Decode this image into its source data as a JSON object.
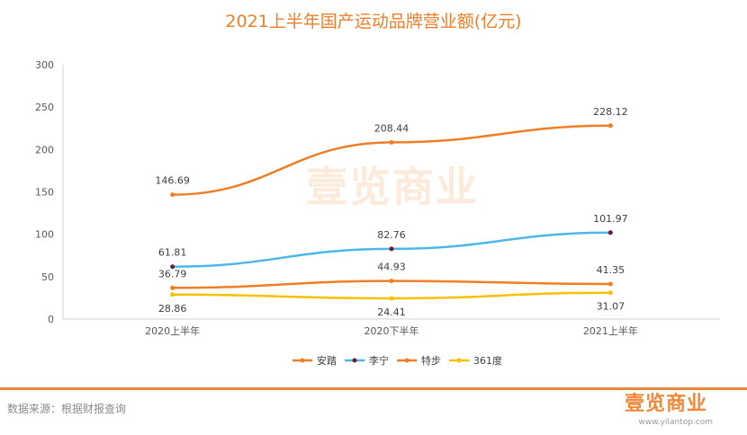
{
  "chart_data": {
    "type": "line",
    "title": "2021上半年国产运动品牌营业额(亿元)",
    "categories": [
      "2020上半年",
      "2020下半年",
      "2021上半年"
    ],
    "ylim": [
      0,
      300
    ],
    "yticks": [
      0,
      50,
      100,
      150,
      200,
      250,
      300
    ],
    "grid": false,
    "legend_position": "bottom",
    "series": [
      {
        "name": "安踏",
        "values": [
          146.69,
          208.44,
          228.12
        ],
        "labels": [
          "146.69",
          "208.44",
          "228.12"
        ],
        "color": "#f07e26",
        "marker": "#f07e26",
        "label_pos": "above"
      },
      {
        "name": "李宁",
        "values": [
          61.81,
          82.76,
          101.97
        ],
        "labels": [
          "61.81",
          "82.76",
          "101.97"
        ],
        "color": "#4db8e8",
        "marker": "#6b1d38",
        "label_pos": "above"
      },
      {
        "name": "特步",
        "values": [
          36.79,
          44.93,
          41.35
        ],
        "labels": [
          "36.79",
          "44.93",
          "41.35"
        ],
        "color": "#f07e26",
        "marker": "#f07e26",
        "label_pos": "above"
      },
      {
        "name": "361度",
        "values": [
          28.86,
          24.41,
          31.07
        ],
        "labels": [
          "28.86",
          "24.41",
          "31.07"
        ],
        "color": "#f5c100",
        "marker": "#f5c100",
        "label_pos": "below"
      }
    ]
  },
  "footer": {
    "source": "数据来源：根据财报查询",
    "brand": "壹览商业",
    "url": "www.yilantop.com",
    "accent_color": "#f0883a"
  },
  "watermark": "壹览商业"
}
